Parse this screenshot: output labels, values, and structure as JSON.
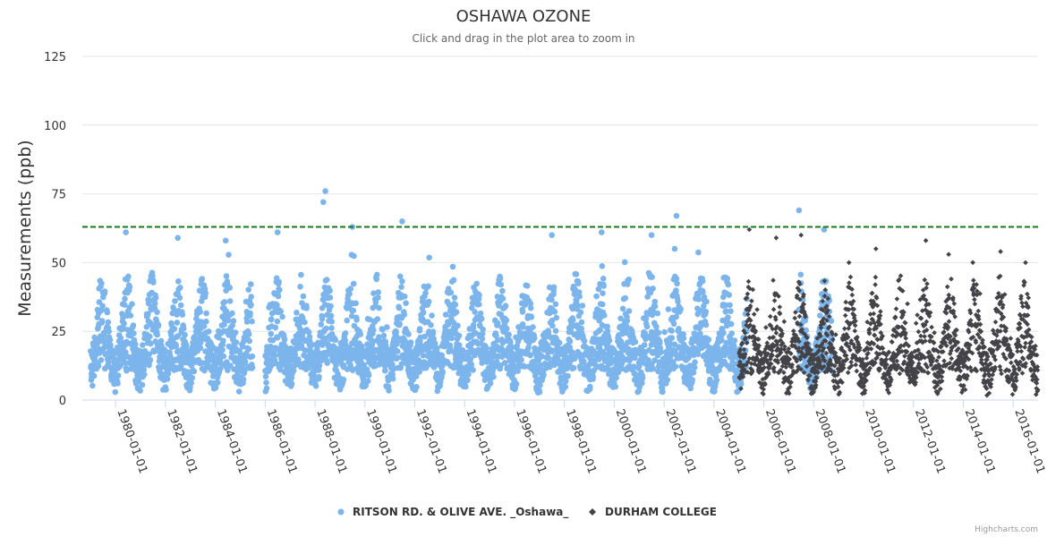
{
  "chart_data": {
    "type": "scatter",
    "title": "OSHAWA OZONE",
    "subtitle": "Click and drag in the plot area to zoom in",
    "xlabel": "",
    "ylabel": "Measurements (ppb)",
    "x_type": "datetime",
    "xlim": [
      "1978-09-01",
      "2016-12-31"
    ],
    "ylim": [
      0,
      125
    ],
    "y_ticks": [
      0,
      25,
      50,
      75,
      100,
      125
    ],
    "x_ticks": [
      "1980-01-01",
      "1982-01-01",
      "1984-01-01",
      "1986-01-01",
      "1988-01-01",
      "1990-01-01",
      "1992-01-01",
      "1994-01-01",
      "1996-01-01",
      "1998-01-01",
      "2000-01-01",
      "2002-01-01",
      "2004-01-01",
      "2006-01-01",
      "2008-01-01",
      "2010-01-01",
      "2012-01-01",
      "2014-01-01",
      "2016-01-01"
    ],
    "grid": true,
    "legend_position": "bottom-center",
    "threshold": {
      "value": 63,
      "color": "#1a7a1a",
      "style": "dashed"
    },
    "series": [
      {
        "name": "RITSON RD. & OLIVE AVE. _Oshawa_",
        "marker": "circle",
        "color": "#7cb5ec",
        "ranges": [
          [
            "1979-01-01",
            "1985-06-30"
          ],
          [
            "1986-01-01",
            "2005-04-30"
          ],
          [
            "2007-06-01",
            "2008-09-30"
          ]
        ],
        "annual_range": [
          2,
          45
        ],
        "peaks": [
          [
            "1988-06-01",
            76
          ],
          [
            "1988-05-01",
            72
          ],
          [
            "1989-07-01",
            63
          ],
          [
            "1991-07-01",
            65
          ],
          [
            "1986-07-01",
            61
          ],
          [
            "1982-07-01",
            59
          ],
          [
            "1984-06-01",
            58
          ],
          [
            "1999-07-01",
            61
          ],
          [
            "2002-07-01",
            67
          ],
          [
            "2007-06-01",
            69
          ],
          [
            "2008-06-01",
            62
          ],
          [
            "1980-06-01",
            61
          ],
          [
            "1997-07-01",
            60
          ],
          [
            "2001-07-01",
            60
          ]
        ]
      },
      {
        "name": "DURHAM COLLEGE",
        "marker": "diamond",
        "color": "#434348",
        "ranges": [
          [
            "2005-01-01",
            "2016-12-31"
          ]
        ],
        "annual_range": [
          3,
          42
        ],
        "peaks": [
          [
            "2005-06-01",
            62
          ],
          [
            "2006-07-01",
            59
          ],
          [
            "2007-07-01",
            60
          ],
          [
            "2010-07-01",
            55
          ],
          [
            "2012-07-01",
            58
          ],
          [
            "2013-06-01",
            53
          ],
          [
            "2015-07-01",
            54
          ],
          [
            "2016-07-01",
            50
          ],
          [
            "2009-06-01",
            50
          ]
        ]
      }
    ]
  },
  "credits": "Highcharts.com"
}
